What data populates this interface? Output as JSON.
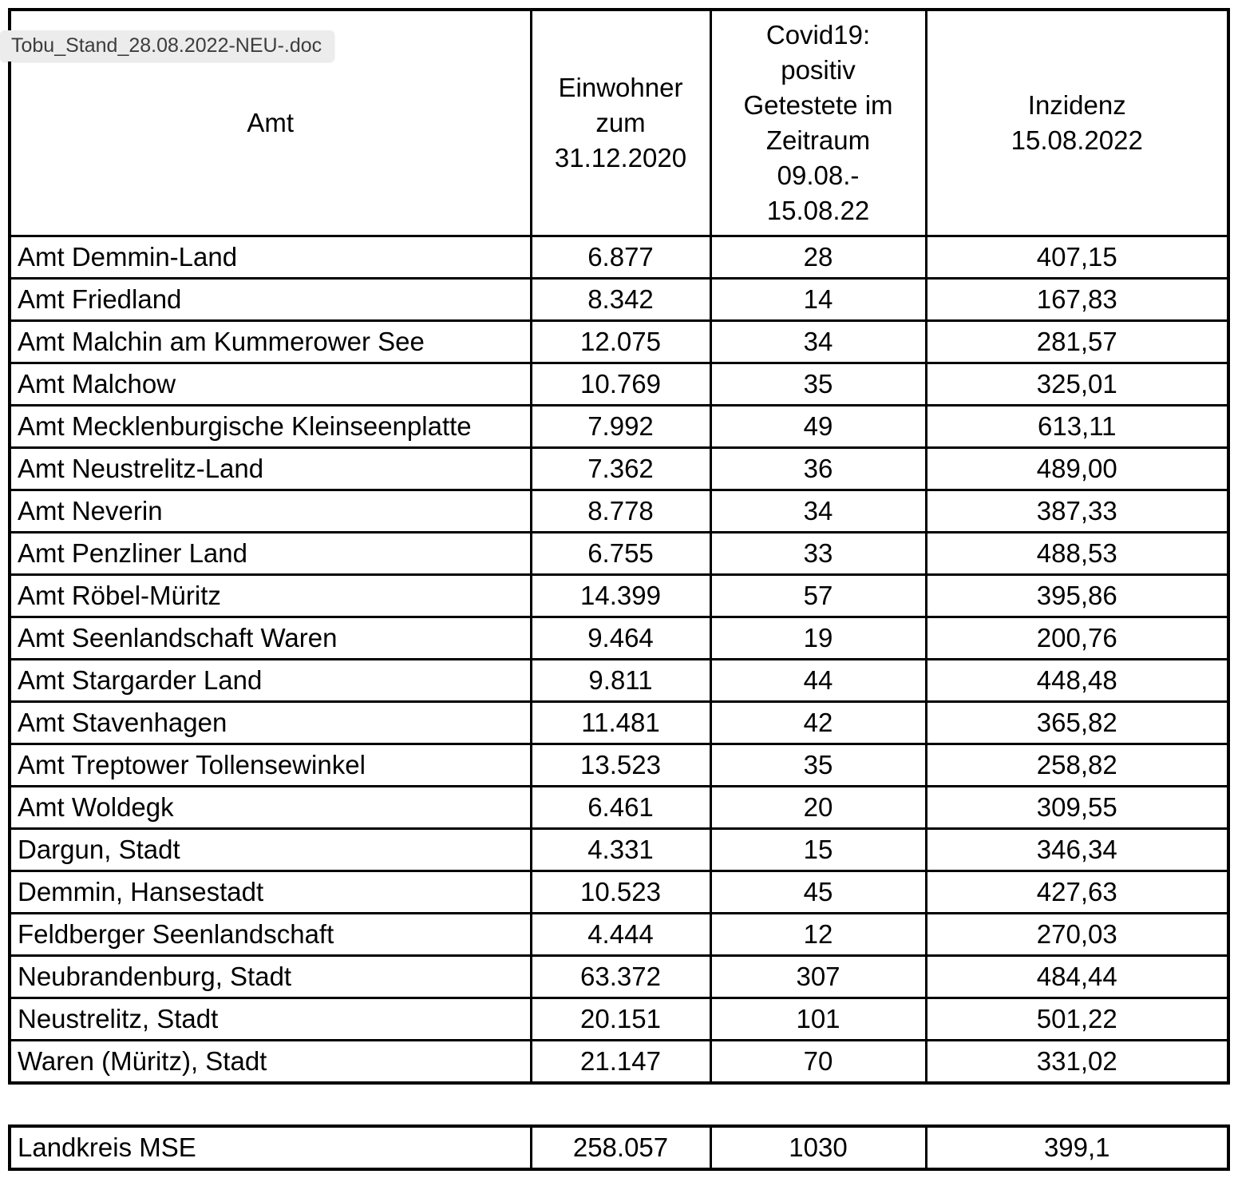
{
  "tooltip": {
    "filename": "Tobu_Stand_28.08.2022-NEU-.doc"
  },
  "table": {
    "columns": [
      "Amt",
      "Einwohner\nzum\n31.12.2020",
      "Covid19:\npositiv\nGetestete im\nZeitraum\n09.08.-\n15.08.22",
      "Inzidenz\n15.08.2022"
    ],
    "rows": [
      {
        "name": "Amt Demmin-Land",
        "einwohner": "6.877",
        "positiv": "28",
        "inzidenz": "407,15"
      },
      {
        "name": "Amt Friedland",
        "einwohner": "8.342",
        "positiv": "14",
        "inzidenz": "167,83"
      },
      {
        "name": "Amt Malchin am Kummerower See",
        "einwohner": "12.075",
        "positiv": "34",
        "inzidenz": "281,57"
      },
      {
        "name": "Amt Malchow",
        "einwohner": "10.769",
        "positiv": "35",
        "inzidenz": "325,01"
      },
      {
        "name": "Amt Mecklenburgische Kleinseenplatte",
        "einwohner": "7.992",
        "positiv": "49",
        "inzidenz": "613,11"
      },
      {
        "name": "Amt Neustrelitz-Land",
        "einwohner": "7.362",
        "positiv": "36",
        "inzidenz": "489,00"
      },
      {
        "name": "Amt Neverin",
        "einwohner": "8.778",
        "positiv": "34",
        "inzidenz": "387,33"
      },
      {
        "name": "Amt Penzliner Land",
        "einwohner": "6.755",
        "positiv": "33",
        "inzidenz": "488,53"
      },
      {
        "name": "Amt Röbel-Müritz",
        "einwohner": "14.399",
        "positiv": "57",
        "inzidenz": "395,86"
      },
      {
        "name": "Amt Seenlandschaft Waren",
        "einwohner": "9.464",
        "positiv": "19",
        "inzidenz": "200,76"
      },
      {
        "name": "Amt Stargarder Land",
        "einwohner": "9.811",
        "positiv": "44",
        "inzidenz": "448,48"
      },
      {
        "name": "Amt Stavenhagen",
        "einwohner": "11.481",
        "positiv": "42",
        "inzidenz": "365,82"
      },
      {
        "name": "Amt Treptower Tollensewinkel",
        "einwohner": "13.523",
        "positiv": "35",
        "inzidenz": "258,82"
      },
      {
        "name": "Amt Woldegk",
        "einwohner": "6.461",
        "positiv": "20",
        "inzidenz": "309,55"
      },
      {
        "name": "Dargun, Stadt",
        "einwohner": "4.331",
        "positiv": "15",
        "inzidenz": "346,34"
      },
      {
        "name": "Demmin, Hansestadt",
        "einwohner": "10.523",
        "positiv": "45",
        "inzidenz": "427,63"
      },
      {
        "name": "Feldberger Seenlandschaft",
        "einwohner": "4.444",
        "positiv": "12",
        "inzidenz": "270,03"
      },
      {
        "name": "Neubrandenburg, Stadt",
        "einwohner": "63.372",
        "positiv": "307",
        "inzidenz": "484,44"
      },
      {
        "name": "Neustrelitz, Stadt",
        "einwohner": "20.151",
        "positiv": "101",
        "inzidenz": "501,22"
      },
      {
        "name": "Waren (Müritz), Stadt",
        "einwohner": "21.147",
        "positiv": "70",
        "inzidenz": "331,02"
      }
    ],
    "summary": {
      "name": "Landkreis MSE",
      "einwohner": "258.057",
      "positiv": "1030",
      "inzidenz": "399,1"
    }
  }
}
